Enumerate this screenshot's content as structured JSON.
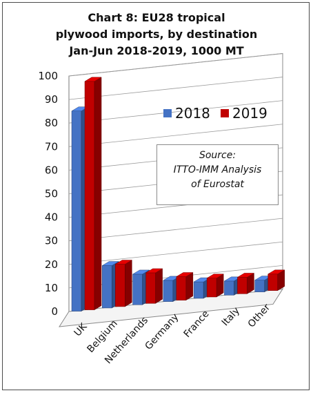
{
  "chart_data": {
    "type": "bar",
    "title_lines": [
      "Chart 8: EU28 tropical",
      "plywood imports, by destination",
      "Jan-Jun 2018-2019, 1000 MT"
    ],
    "categories": [
      "UK",
      "Belgium",
      "Netherlands",
      "Germany",
      "France",
      "Italy",
      "Other"
    ],
    "series": [
      {
        "name": "2018",
        "color": "#4472c4",
        "values": [
          85,
          18,
          13,
          9,
          7,
          6,
          5
        ]
      },
      {
        "name": "2019",
        "color": "#c00000",
        "values": [
          97,
          18,
          13,
          10,
          8,
          7,
          7
        ]
      }
    ],
    "ylim": [
      0,
      100
    ],
    "yticks": [
      "0",
      "10",
      "20",
      "30",
      "40",
      "50",
      "60",
      "70",
      "80",
      "90",
      "100"
    ],
    "grid": true,
    "legend_position": "top-right",
    "source_lines": [
      "Source:",
      "ITTO-IMM Analysis",
      "of Eurostat"
    ]
  }
}
